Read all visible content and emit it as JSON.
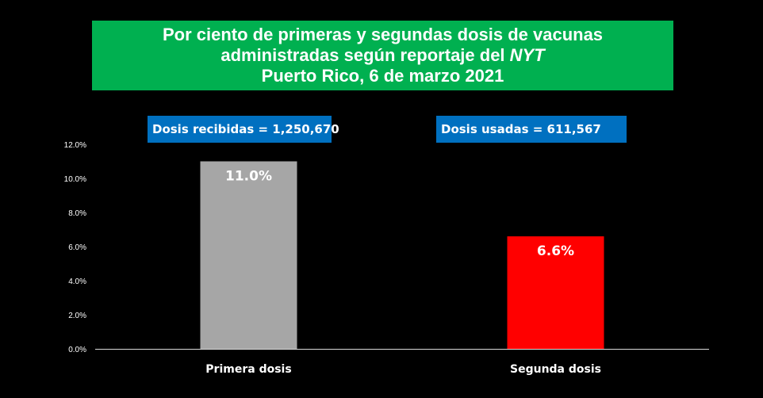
{
  "title": {
    "line1": "Por ciento de primeras y segundas dosis de vacunas",
    "line2_prefix": "administradas según reportaje del ",
    "line2_emph": "NYT",
    "line3": "Puerto Rico, 6 de marzo 2021"
  },
  "info": {
    "recibidas": "Dosis recibidas = 1,250,670",
    "usadas": "Dosis usadas = 611,567"
  },
  "colors": {
    "background": "#000000",
    "title_bg": "#00b050",
    "info_bg": "#0070c0"
  },
  "chart_data": {
    "type": "bar",
    "categories": [
      "Primera dosis",
      "Segunda dosis"
    ],
    "values": [
      11.0,
      6.6
    ],
    "data_labels": [
      "11.0%",
      "6.6%"
    ],
    "bar_colors": [
      "#a6a6a6",
      "#ff0000"
    ],
    "ylim": [
      0,
      12
    ],
    "yticks": [
      {
        "value": 0,
        "label": "0.0%"
      },
      {
        "value": 2,
        "label": "2.0%"
      },
      {
        "value": 4,
        "label": "4.0%"
      },
      {
        "value": 6,
        "label": "6.0%"
      },
      {
        "value": 8,
        "label": "8.0%"
      },
      {
        "value": 10,
        "label": "10.0%"
      },
      {
        "value": 12,
        "label": "12.0%"
      }
    ],
    "grid": false
  }
}
